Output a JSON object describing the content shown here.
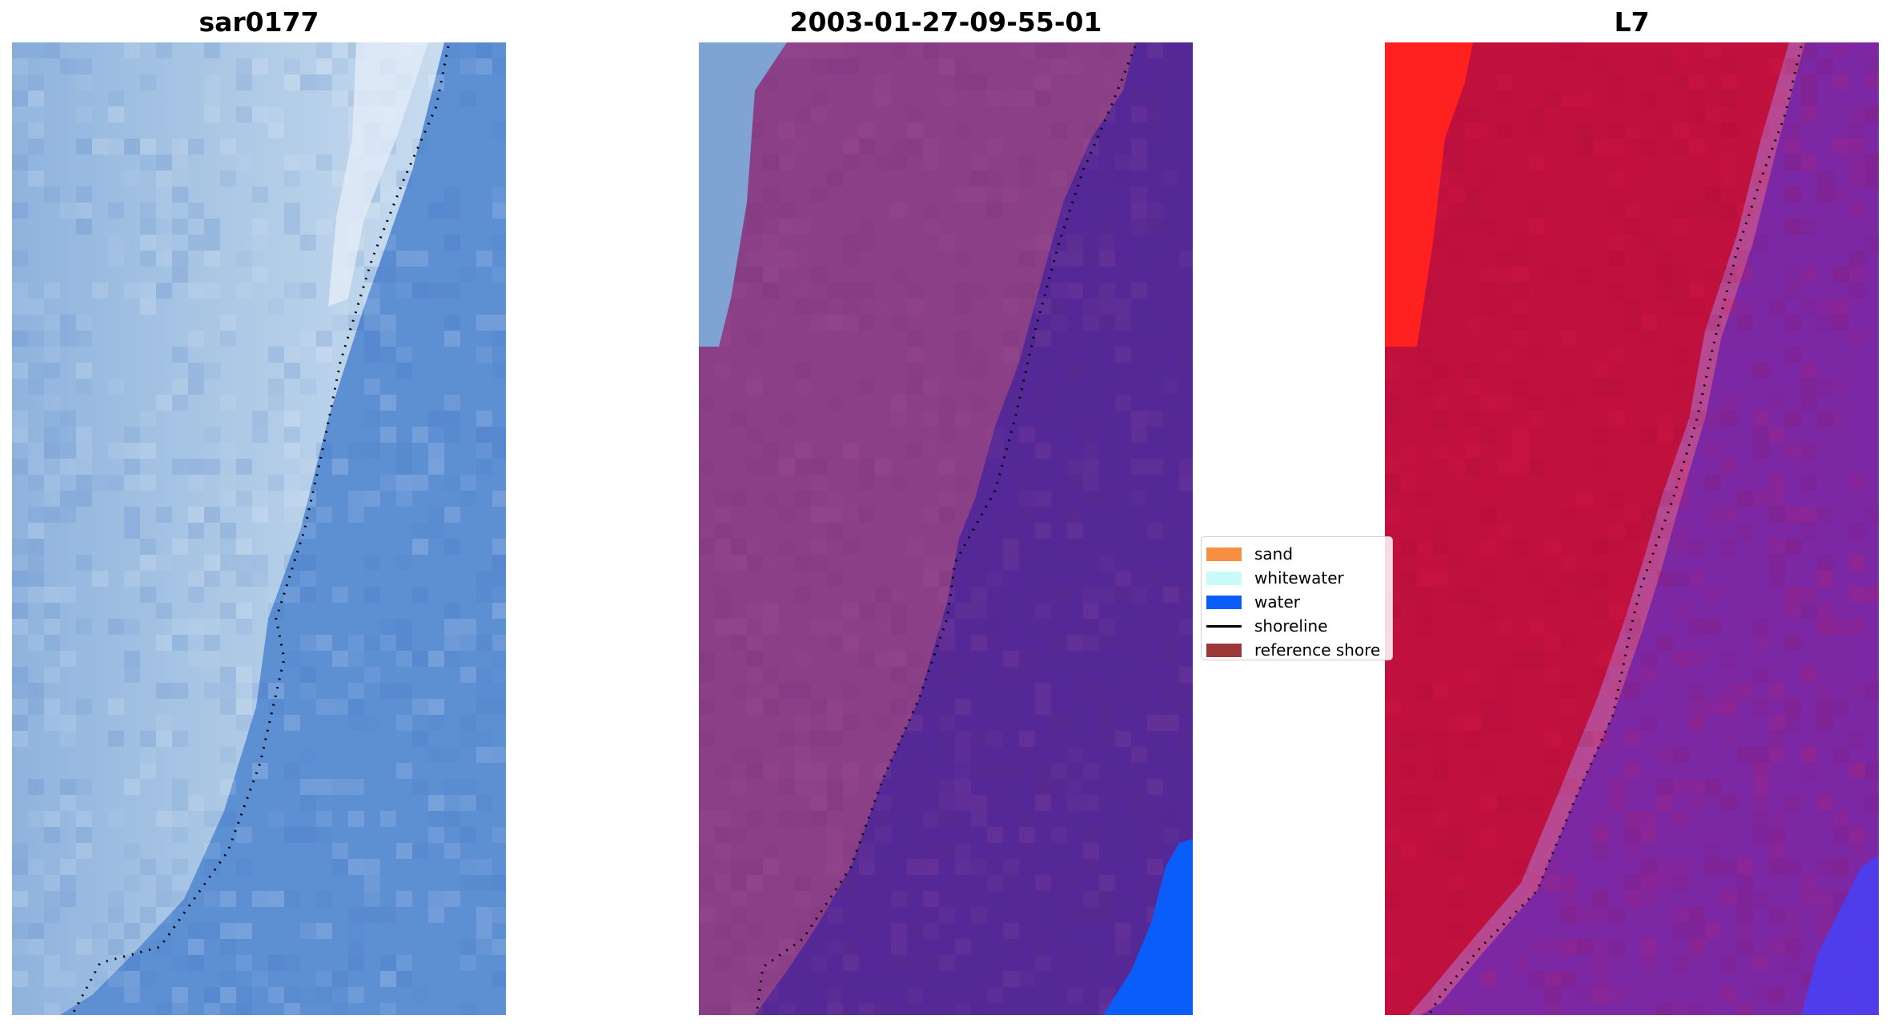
{
  "panels": [
    {
      "title": "sar0177",
      "base": "#5d8fd3"
    },
    {
      "title": "2003-01-27-09-55-01",
      "base": "#542896"
    },
    {
      "title": "L7",
      "base": "#7c27a3"
    }
  ],
  "legend": [
    {
      "label": "sand",
      "color": "#f98f43",
      "kind": "patch"
    },
    {
      "label": "whitewater",
      "color": "#c9fbf8",
      "kind": "patch"
    },
    {
      "label": "water",
      "color": "#0b5dfa",
      "kind": "patch"
    },
    {
      "label": "shoreline",
      "color": "#000000",
      "kind": "line"
    },
    {
      "label": "reference shore",
      "color": "#9b3838",
      "kind": "patch"
    }
  ]
}
